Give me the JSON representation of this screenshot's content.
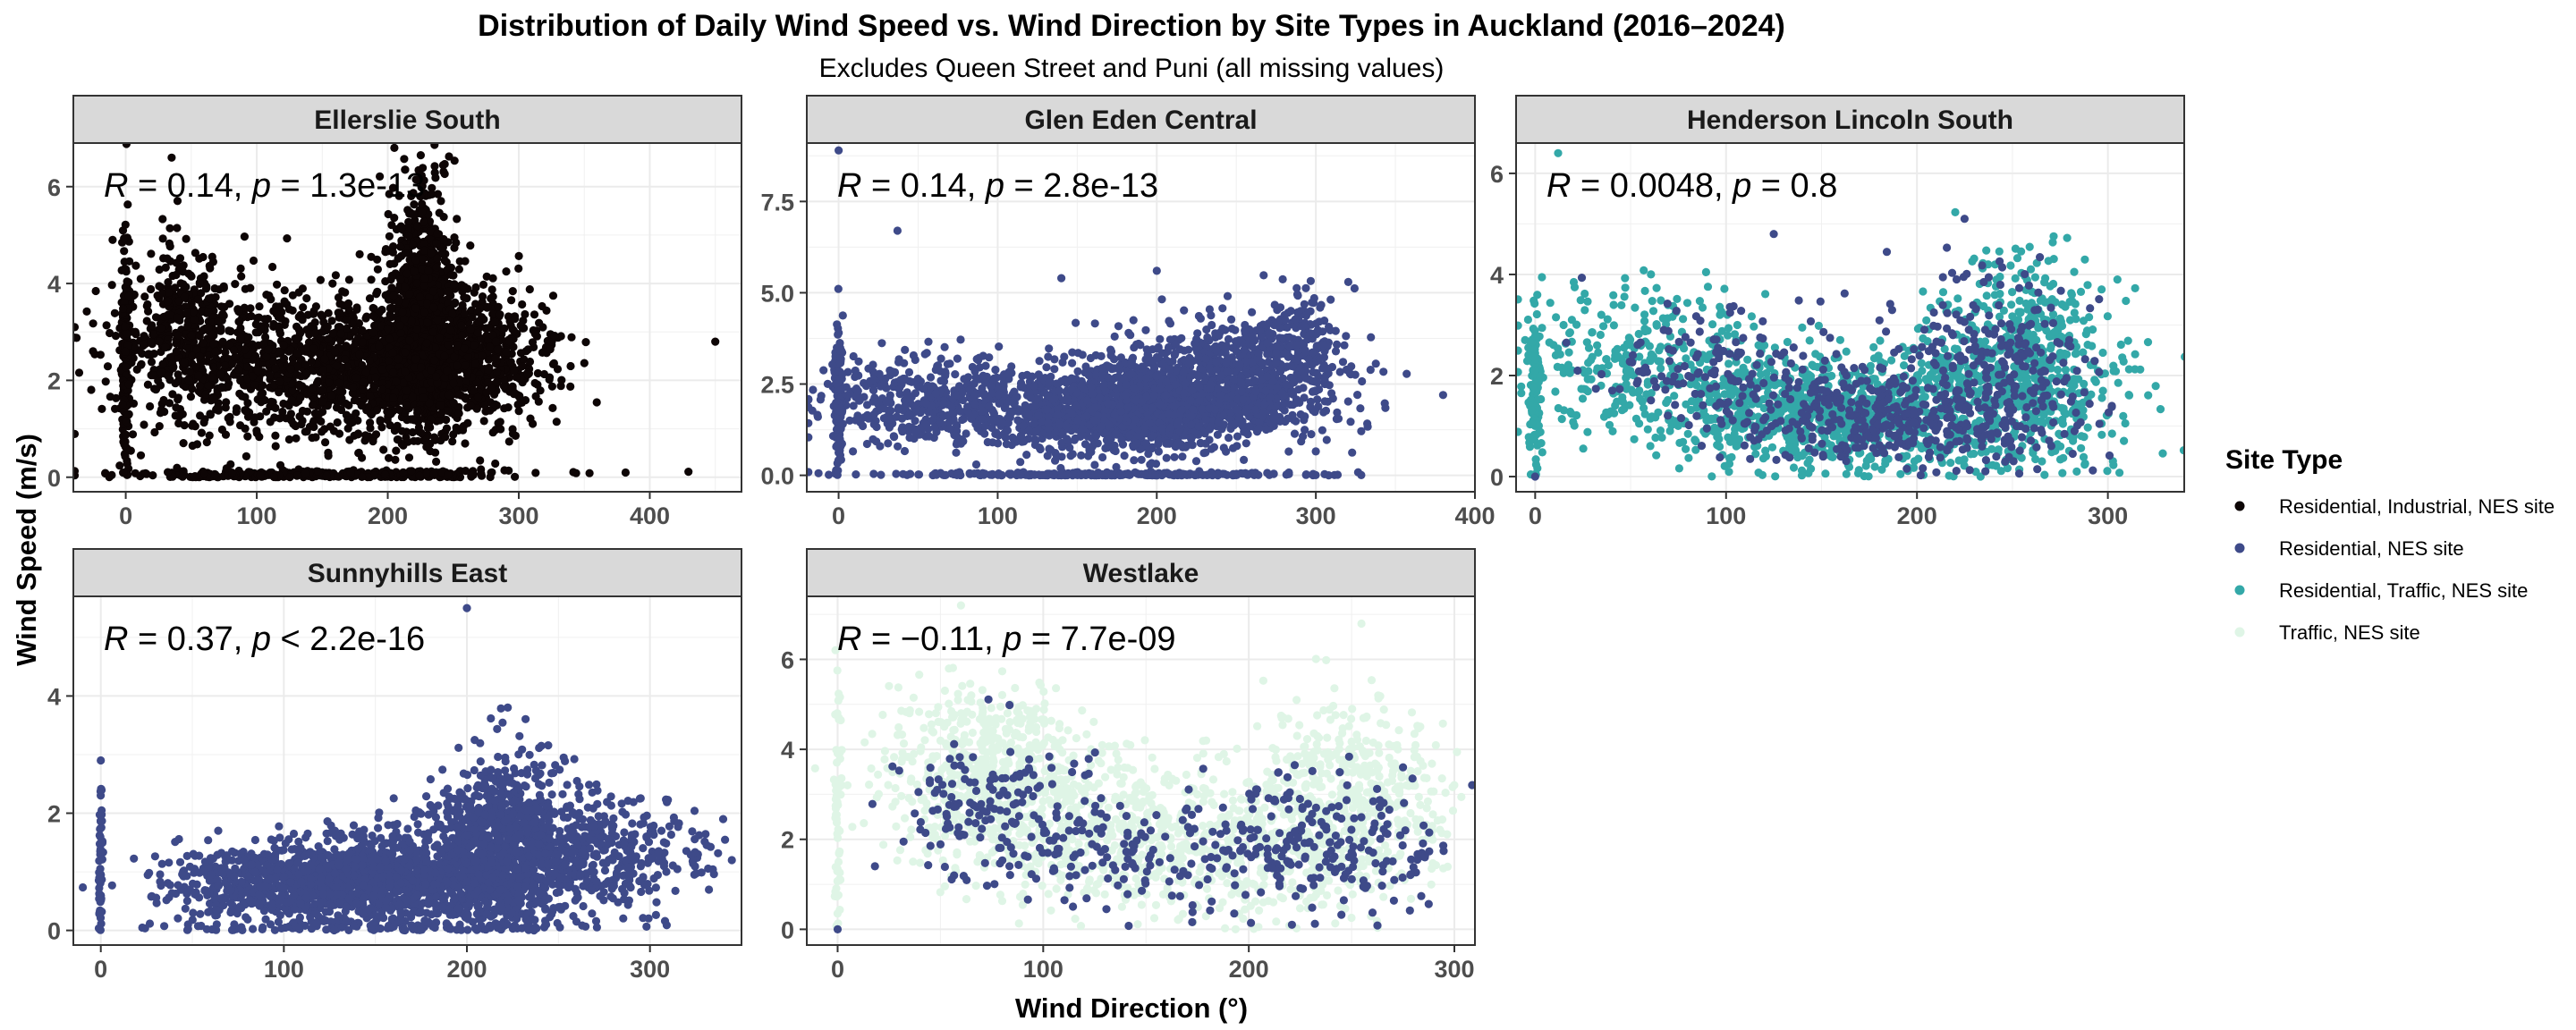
{
  "chart_data": {
    "type": "scatter",
    "title": "Distribution of Daily Wind Speed vs. Wind Direction by Site Types in Auckland (2016–2024)",
    "subtitle": "Excludes Queen Street and Puni (all missing values)",
    "xlabel": "Wind Direction (°)",
    "ylabel": "Wind Speed (m/s)",
    "legend": {
      "title": "Site Type",
      "position": "right",
      "entries": [
        {
          "name": "Residential, Industrial, NES site",
          "color": "#0d0505"
        },
        {
          "name": "Residential, NES site",
          "color": "#3e4a89"
        },
        {
          "name": "Residential, Traffic, NES site",
          "color": "#33a8a8"
        },
        {
          "name": "Traffic, NES site",
          "color": "#dff5e6"
        }
      ]
    },
    "grid": true,
    "facets": [
      {
        "name": "Ellerslie South",
        "annotation": {
          "r": "0.14",
          "p": "1.3e-13",
          "op": "="
        },
        "xlim": [
          -40,
          470
        ],
        "ylim": [
          -0.3,
          6.9
        ],
        "xticks": [
          0,
          100,
          200,
          300,
          400
        ],
        "yticks": [
          0,
          2,
          4,
          6
        ],
        "series": [
          {
            "site_type": "Residential, Industrial, NES site",
            "clusters": [
              {
                "xc": 225,
                "xs": 12,
                "yc": 3.6,
                "ys": 1.3,
                "n": 900
              },
              {
                "xc": 215,
                "xs": 45,
                "yc": 2.3,
                "ys": 0.75,
                "n": 1100
              },
              {
                "xc": 110,
                "xs": 55,
                "yc": 2.2,
                "ys": 0.75,
                "n": 700
              },
              {
                "xc": 45,
                "xs": 25,
                "yc": 3.2,
                "ys": 0.9,
                "n": 350
              },
              {
                "xc": 0,
                "xs": 1.5,
                "yc": 2.4,
                "ys": 1.2,
                "n": 160
              },
              {
                "xc": 150,
                "xs": 80,
                "yc": 0.05,
                "ys": 0.05,
                "n": 280
              },
              {
                "xc": 265,
                "xs": 30,
                "yc": 2.6,
                "ys": 0.6,
                "n": 350
              }
            ],
            "outliers": [
              [
                -25,
                2.6
              ],
              [
                450,
                2.8
              ],
              [
                35,
                6.6
              ],
              [
                205,
                6.8
              ],
              [
                -10,
                4.9
              ]
            ]
          }
        ]
      },
      {
        "name": "Glen Eden Central",
        "annotation": {
          "r": "0.14",
          "p": "2.8e-13",
          "op": "="
        },
        "xlim": [
          -20,
          400
        ],
        "ylim": [
          -0.45,
          9.1
        ],
        "xticks": [
          0,
          100,
          200,
          300,
          400
        ],
        "yticks": [
          0,
          2.5,
          5,
          7.5
        ],
        "ytickLabels": [
          "0.0",
          "2.5",
          "5.0",
          "7.5"
        ],
        "series": [
          {
            "site_type": "Residential, NES site",
            "clusters": [
              {
                "xc": 185,
                "xs": 40,
                "yc": 1.8,
                "ys": 0.55,
                "n": 1400
              },
              {
                "xc": 250,
                "xs": 35,
                "yc": 2.7,
                "ys": 0.8,
                "n": 800
              },
              {
                "xc": 70,
                "xs": 40,
                "yc": 2.0,
                "ys": 0.6,
                "n": 500
              },
              {
                "xc": 0,
                "xs": 1.5,
                "yc": 2.0,
                "ys": 1.0,
                "n": 140
              },
              {
                "xc": 170,
                "xs": 75,
                "yc": 0.02,
                "ys": 0.03,
                "n": 260
              },
              {
                "xc": 290,
                "xs": 12,
                "yc": 3.6,
                "ys": 0.9,
                "n": 120
              }
            ],
            "outliers": [
              [
                0,
                8.9
              ],
              [
                37,
                6.7
              ],
              [
                380,
                2.2
              ],
              [
                200,
                5.6
              ],
              [
                140,
                5.4
              ]
            ]
          }
        ]
      },
      {
        "name": "Henderson Lincoln South",
        "annotation": {
          "r": "0.0048",
          "p": "0.8",
          "op": "="
        },
        "xlim": [
          -10,
          340
        ],
        "ylim": [
          -0.3,
          6.6
        ],
        "xticks": [
          0,
          100,
          200,
          300
        ],
        "yticks": [
          0,
          2,
          4,
          6
        ],
        "series": [
          {
            "site_type": "Residential, Traffic, NES site",
            "clusters": [
              {
                "xc": 150,
                "xs": 45,
                "yc": 1.3,
                "ys": 0.5,
                "n": 700
              },
              {
                "xc": 255,
                "xs": 25,
                "yc": 2.3,
                "ys": 1.0,
                "n": 550
              },
              {
                "xc": 60,
                "xs": 35,
                "yc": 2.4,
                "ys": 0.8,
                "n": 300
              },
              {
                "xc": 0,
                "xs": 1.5,
                "yc": 1.8,
                "ys": 0.9,
                "n": 120
              },
              {
                "xc": 200,
                "xs": 60,
                "yc": 1.2,
                "ys": 0.7,
                "n": 300
              }
            ],
            "outliers": [
              [
                12,
                6.4
              ],
              [
                305,
                3.9
              ]
            ]
          },
          {
            "site_type": "Residential, NES site",
            "clusters": [
              {
                "xc": 190,
                "xs": 45,
                "yc": 1.2,
                "ys": 0.45,
                "n": 420
              },
              {
                "xc": 240,
                "xs": 25,
                "yc": 2.3,
                "ys": 0.9,
                "n": 220
              },
              {
                "xc": 95,
                "xs": 30,
                "yc": 2.2,
                "ys": 0.6,
                "n": 120
              }
            ],
            "outliers": [
              [
                0,
                0
              ],
              [
                125,
                4.8
              ]
            ]
          }
        ]
      },
      {
        "name": "Sunnyhills East",
        "annotation": {
          "r": "0.37",
          "p": "2.2e-16",
          "op": "<"
        },
        "xlim": [
          -15,
          350
        ],
        "ylim": [
          -0.25,
          5.7
        ],
        "xticks": [
          0,
          100,
          200,
          300
        ],
        "yticks": [
          0,
          2,
          4
        ],
        "series": [
          {
            "site_type": "Residential, NES site",
            "clusters": [
              {
                "xc": 150,
                "xs": 38,
                "yc": 0.85,
                "ys": 0.35,
                "n": 1400
              },
              {
                "xc": 220,
                "xs": 20,
                "yc": 1.5,
                "ys": 0.75,
                "n": 900
              },
              {
                "xc": 270,
                "xs": 30,
                "yc": 1.3,
                "ys": 0.5,
                "n": 400
              },
              {
                "xc": 80,
                "xs": 25,
                "yc": 0.8,
                "ys": 0.3,
                "n": 300
              },
              {
                "xc": 0,
                "xs": 0.5,
                "yc": 1.2,
                "ys": 0.8,
                "n": 60
              },
              {
                "xc": 160,
                "xs": 60,
                "yc": 0.05,
                "ys": 0.05,
                "n": 80
              }
            ],
            "outliers": [
              [
                200,
                5.5
              ],
              [
                0,
                2.9
              ],
              [
                340,
                1.9
              ]
            ]
          }
        ]
      },
      {
        "name": "Westlake",
        "annotation": {
          "r": "−0.11",
          "p": "7.7e-09",
          "op": "="
        },
        "xlim": [
          -15,
          310
        ],
        "ylim": [
          -0.35,
          7.4
        ],
        "xticks": [
          0,
          100,
          200,
          300
        ],
        "yticks": [
          0,
          2,
          4,
          6
        ],
        "series": [
          {
            "site_type": "Traffic, NES site",
            "clusters": [
              {
                "xc": 75,
                "xs": 25,
                "yc": 3.4,
                "ys": 1.0,
                "n": 600
              },
              {
                "xc": 140,
                "xs": 40,
                "yc": 2.2,
                "ys": 0.9,
                "n": 500
              },
              {
                "xc": 250,
                "xs": 25,
                "yc": 2.8,
                "ys": 1.1,
                "n": 500
              },
              {
                "xc": 200,
                "xs": 30,
                "yc": 1.7,
                "ys": 0.8,
                "n": 250
              },
              {
                "xc": 0,
                "xs": 1,
                "yc": 2.5,
                "ys": 1.5,
                "n": 60
              }
            ],
            "outliers": [
              [
                60,
                7.2
              ]
            ]
          },
          {
            "site_type": "Residential, NES site",
            "clusters": [
              {
                "xc": 75,
                "xs": 25,
                "yc": 2.8,
                "ys": 0.8,
                "n": 140
              },
              {
                "xc": 230,
                "xs": 30,
                "yc": 1.9,
                "ys": 0.75,
                "n": 240
              },
              {
                "xc": 130,
                "xs": 30,
                "yc": 1.7,
                "ys": 0.6,
                "n": 120
              }
            ],
            "outliers": [
              [
                0,
                0
              ],
              [
                275,
                3.6
              ]
            ]
          }
        ]
      }
    ]
  }
}
